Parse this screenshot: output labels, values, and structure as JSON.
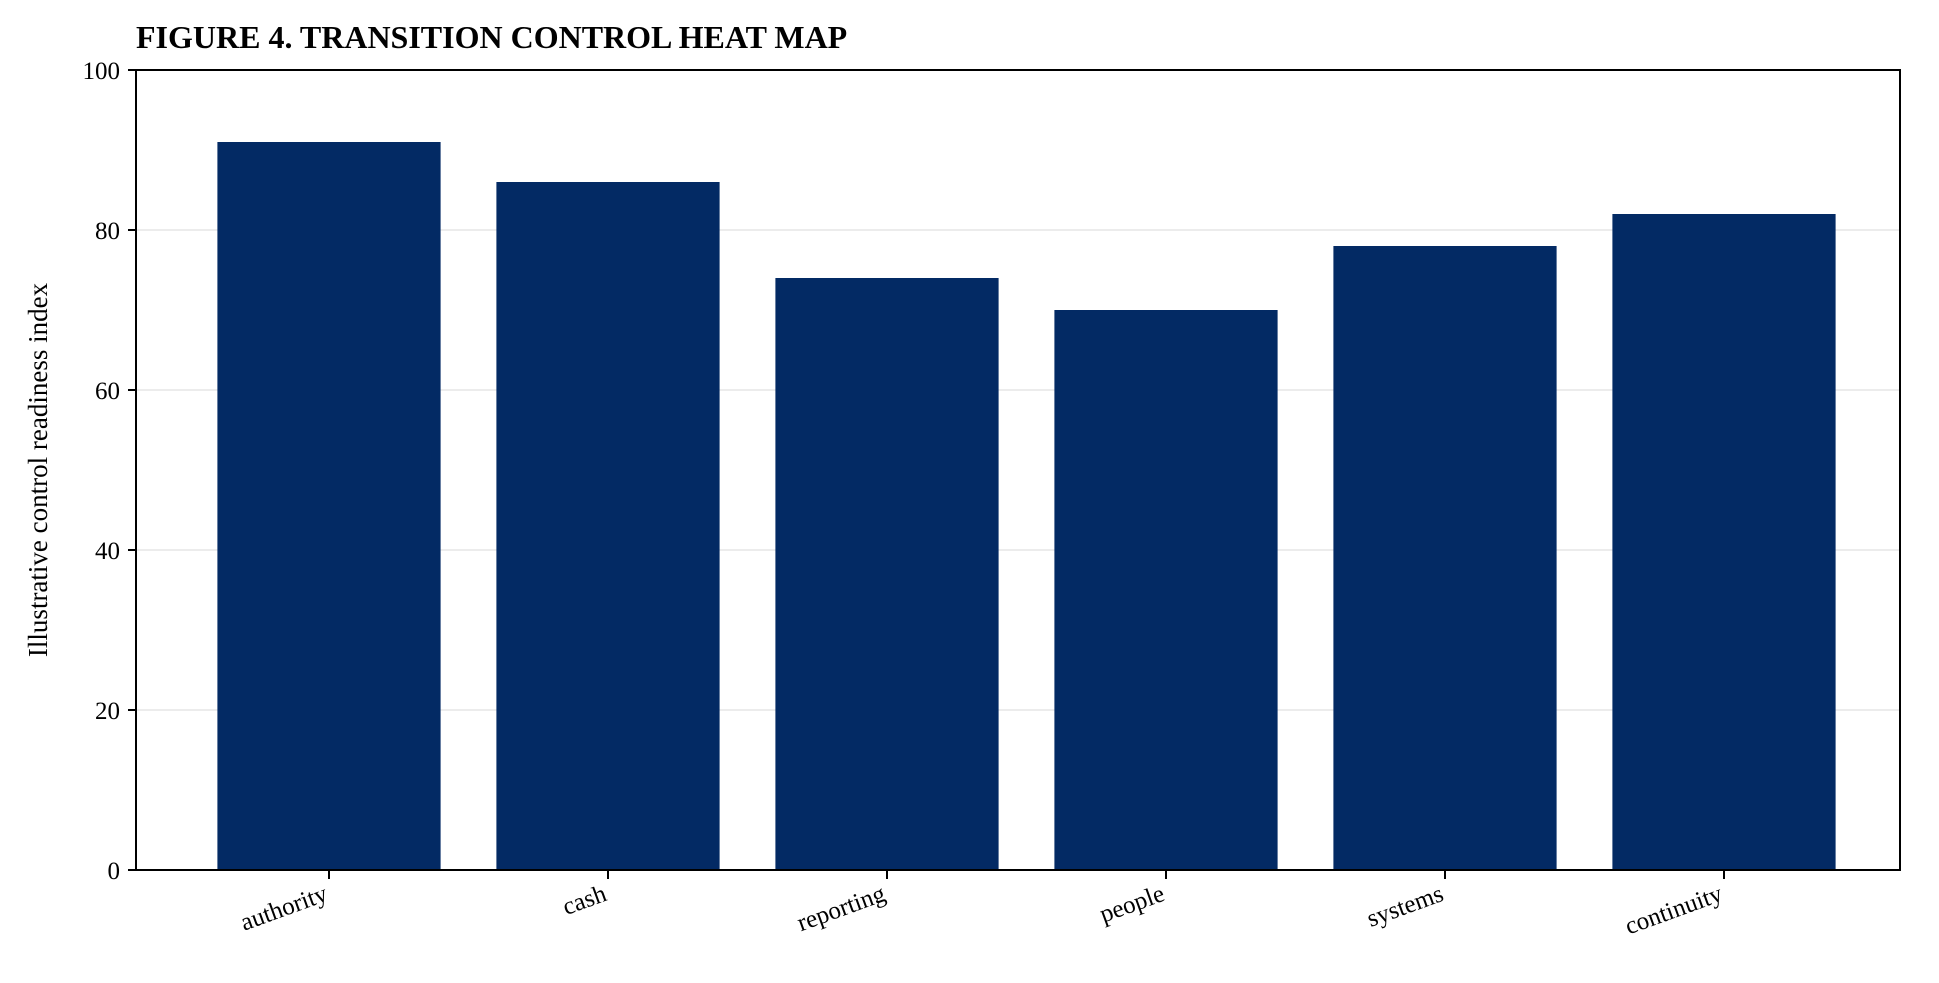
{
  "chart_data": {
    "type": "bar",
    "title": "FIGURE 4. TRANSITION CONTROL HEAT MAP",
    "xlabel": "",
    "ylabel": "Illustrative control readiness index",
    "categories": [
      "authority",
      "cash",
      "reporting",
      "people",
      "systems",
      "continuity"
    ],
    "values": [
      91,
      86,
      74,
      70,
      78,
      82
    ],
    "ylim": [
      0,
      100
    ],
    "yticks": [
      0,
      20,
      40,
      60,
      80,
      100
    ],
    "bar_color": "#032a64",
    "grid": "y-axis horizontal lines",
    "legend": "none"
  }
}
